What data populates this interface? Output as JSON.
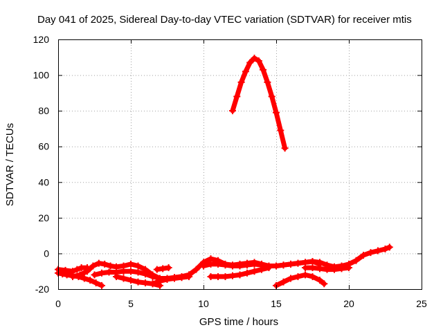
{
  "chart_data": {
    "type": "scatter",
    "title": "Day 041 of 2025, Sidereal Day-to-day VTEC variation (SDTVAR) for receiver mtis",
    "xlabel": "GPS time / hours",
    "ylabel": "SDTVAR / TECUs",
    "xlim": [
      0,
      25
    ],
    "ylim": [
      -20,
      120
    ],
    "xticks": [
      0,
      5,
      10,
      15,
      20,
      25
    ],
    "yticks": [
      -20,
      0,
      20,
      40,
      60,
      80,
      100,
      120
    ],
    "grid": true,
    "color": "#ff0000",
    "series": [
      {
        "x": [
          12.0,
          12.3,
          12.6,
          12.9,
          13.2,
          13.5,
          13.8,
          14.1,
          14.4,
          14.7,
          15.0,
          15.3,
          15.6
        ],
        "y": [
          80,
          88,
          96,
          102,
          107,
          109.5,
          108,
          103,
          96,
          88,
          79,
          69,
          59
        ]
      },
      {
        "x": [
          0.0,
          0.3,
          0.6,
          1.0,
          1.4,
          1.8,
          2.2,
          2.6,
          3.0
        ],
        "y": [
          -11,
          -11.5,
          -12,
          -12.5,
          -13,
          -14,
          -15,
          -16.5,
          -18
        ]
      },
      {
        "x": [
          0.0,
          0.5,
          1.0,
          1.3,
          1.6,
          2.0
        ],
        "y": [
          -9,
          -9.5,
          -10,
          -9,
          -8,
          -8
        ]
      },
      {
        "x": [
          1.0,
          1.5,
          2.0,
          2.4,
          2.8,
          3.2,
          3.6,
          4.0,
          4.5,
          5.0,
          5.5,
          6.0,
          6.5,
          7.0,
          7.5,
          8.0,
          8.5,
          9.0
        ],
        "y": [
          -13,
          -12,
          -10,
          -7,
          -5.5,
          -6,
          -7,
          -7.5,
          -7,
          -6,
          -7,
          -9,
          -12,
          -14,
          -14,
          -13.5,
          -13,
          -12
        ]
      },
      {
        "x": [
          2.5,
          3.0,
          3.5,
          4.0,
          4.5,
          5.0,
          5.5,
          6.0,
          6.5,
          7.0,
          7.5,
          8.0,
          8.5,
          9.0
        ],
        "y": [
          -12,
          -11,
          -10.5,
          -10.5,
          -10,
          -10,
          -10.5,
          -11.5,
          -13,
          -14,
          -14.5,
          -14,
          -13.5,
          -13
        ]
      },
      {
        "x": [
          4.0,
          4.5,
          5.0,
          5.5,
          6.0,
          6.5,
          7.0
        ],
        "y": [
          -13,
          -14,
          -15,
          -16,
          -16.5,
          -17,
          -18
        ]
      },
      {
        "x": [
          6.5,
          7.0,
          7.5,
          8.0,
          8.5,
          9.0,
          9.5,
          10.0,
          10.5,
          11.0,
          11.5,
          12.0,
          12.5,
          13.0,
          13.5,
          14.0,
          14.5,
          15.0,
          15.5,
          16.0,
          16.5,
          17.0,
          17.5,
          18.0,
          18.5,
          19.0,
          19.5,
          20.0,
          20.5,
          21.0,
          21.5,
          22.0,
          22.5,
          22.8
        ],
        "y": [
          -17,
          -15.5,
          -14.5,
          -13.5,
          -13,
          -12,
          -9,
          -5,
          -3,
          -4,
          -6,
          -6.5,
          -6,
          -5.5,
          -5,
          -6,
          -7,
          -7,
          -6.5,
          -6,
          -5.5,
          -5,
          -4.5,
          -5,
          -6.5,
          -7.5,
          -7,
          -6,
          -4,
          -1,
          0.5,
          1.5,
          2.5,
          3.5
        ]
      },
      {
        "x": [
          6.8,
          7.2,
          7.6
        ],
        "y": [
          -9,
          -8.5,
          -8
        ]
      },
      {
        "x": [
          10.0,
          10.5,
          11.0,
          11.5,
          12.0,
          12.5,
          13.0,
          13.5,
          14.0,
          14.5,
          15.0,
          15.5,
          16.0,
          16.5,
          17.0,
          17.5,
          18.0
        ],
        "y": [
          -7,
          -6,
          -6,
          -6.5,
          -7,
          -7,
          -6.5,
          -6,
          -6.5,
          -7,
          -7,
          -6.5,
          -6,
          -5.5,
          -5,
          -4.5,
          -6
        ]
      },
      {
        "x": [
          10.5,
          11.0,
          11.5,
          12.0,
          12.5,
          13.0,
          13.5,
          14.0,
          14.5
        ],
        "y": [
          -13,
          -13,
          -13,
          -12.5,
          -12,
          -11,
          -10,
          -9,
          -8
        ]
      },
      {
        "x": [
          15.0,
          15.5,
          16.0,
          16.5,
          17.0,
          17.5,
          18.0,
          18.3
        ],
        "y": [
          -18,
          -16,
          -14,
          -13,
          -12,
          -13,
          -15,
          -17
        ]
      },
      {
        "x": [
          17.0,
          17.5,
          18.0,
          18.5,
          19.0,
          19.5,
          20.0
        ],
        "y": [
          -8,
          -8,
          -8.5,
          -9,
          -9,
          -8.5,
          -8
        ]
      }
    ]
  }
}
